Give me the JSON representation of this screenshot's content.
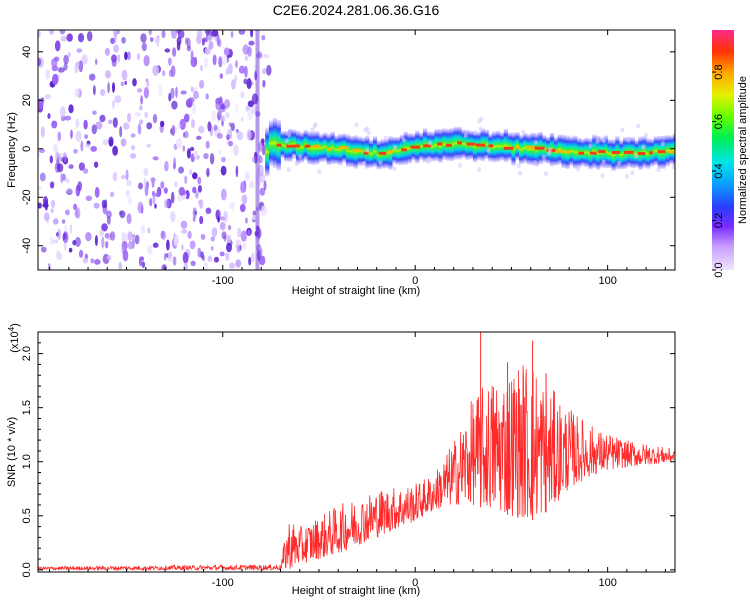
{
  "chart_data": [
    {
      "type": "heatmap",
      "title": "C2E6.2024.281.06.36.G16",
      "xlabel": "Height of straight line (km)",
      "ylabel": "Frequency (Hz)",
      "xlim": [
        -196,
        135
      ],
      "ylim": [
        -50,
        49
      ],
      "xticks": [
        "-100",
        "0",
        "100"
      ],
      "xtick_values": [
        -100,
        0,
        100
      ],
      "yticks": [
        "-40",
        "-20",
        "0",
        "20",
        "40"
      ],
      "ytick_values": [
        -40,
        -20,
        0,
        20,
        40
      ],
      "colorbar": {
        "label": "Normalized spectral amplitude",
        "ticks": [
          "0.0",
          "0.2",
          "0.4",
          "0.6",
          "0.8"
        ],
        "tick_values": [
          0.0,
          0.2,
          0.4,
          0.6,
          0.8
        ],
        "range": [
          0,
          0.97
        ],
        "colormap": "rainbow (magenta-blue-cyan-green-yellow-red)"
      },
      "noise_region": {
        "x_from": -196,
        "x_to": -76,
        "color": "#7b3fe4"
      },
      "signal_band": {
        "x_from": -78,
        "x_to": 135,
        "center_freq": [
          {
            "x": -76,
            "y": 2
          },
          {
            "x": -60,
            "y": 1
          },
          {
            "x": -40,
            "y": 0
          },
          {
            "x": -20,
            "y": -2
          },
          {
            "x": 0,
            "y": 1
          },
          {
            "x": 20,
            "y": 2
          },
          {
            "x": 40,
            "y": 1
          },
          {
            "x": 60,
            "y": 0
          },
          {
            "x": 80,
            "y": -1
          },
          {
            "x": 100,
            "y": -2
          },
          {
            "x": 135,
            "y": -1
          }
        ]
      },
      "grid": false
    },
    {
      "type": "line",
      "xlabel": "Height of straight line (km)",
      "ylabel": "SNR (10 * v/v)",
      "yscale_label": "(x10",
      "yscale_exponent": "4",
      "yscale_suffix": ")",
      "xlim": [
        -196,
        135
      ],
      "ylim": [
        -0.02,
        2.2
      ],
      "xticks": [
        "-100",
        "0",
        "100"
      ],
      "xtick_values": [
        -100,
        0,
        100
      ],
      "yticks": [
        "0.0",
        "0.5",
        "1.0",
        "1.5",
        "2.0"
      ],
      "ytick_values": [
        0.0,
        0.5,
        1.0,
        1.5,
        2.0
      ],
      "line_color": "#ff2a2a",
      "series": [
        {
          "envelope": [
            {
              "x": -196,
              "low": 0.0,
              "high": 0.03
            },
            {
              "x": -70,
              "low": 0.0,
              "high": 0.05
            },
            {
              "x": -66,
              "low": 0.0,
              "high": 0.5
            },
            {
              "x": -60,
              "low": 0.05,
              "high": 0.4
            },
            {
              "x": -40,
              "low": 0.15,
              "high": 0.6
            },
            {
              "x": -20,
              "low": 0.3,
              "high": 0.75
            },
            {
              "x": 0,
              "low": 0.45,
              "high": 0.8
            },
            {
              "x": 10,
              "low": 0.55,
              "high": 0.9
            },
            {
              "x": 20,
              "low": 0.6,
              "high": 1.2
            },
            {
              "x": 30,
              "low": 0.6,
              "high": 1.6
            },
            {
              "x": 40,
              "low": 0.55,
              "high": 1.8
            },
            {
              "x": 50,
              "low": 0.5,
              "high": 1.9
            },
            {
              "x": 60,
              "low": 0.45,
              "high": 2.0
            },
            {
              "x": 70,
              "low": 0.55,
              "high": 1.7
            },
            {
              "x": 80,
              "low": 0.75,
              "high": 1.5
            },
            {
              "x": 95,
              "low": 0.9,
              "high": 1.3
            },
            {
              "x": 110,
              "low": 0.95,
              "high": 1.2
            },
            {
              "x": 135,
              "low": 1.0,
              "high": 1.12
            }
          ],
          "peaks": [
            {
              "x": 34,
              "y": 2.2
            },
            {
              "x": 61,
              "y": 2.12
            },
            {
              "x": 48,
              "y": 1.92
            },
            {
              "x": 68,
              "y": 1.82
            }
          ]
        }
      ]
    }
  ]
}
